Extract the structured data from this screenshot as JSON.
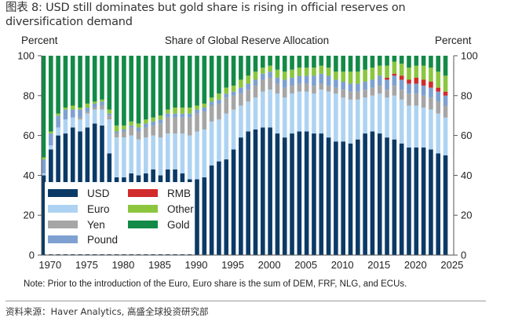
{
  "figure_title": "图表 8: USD still dominates but gold share is rising in official reserves on diversification demand",
  "note": "Note: Prior to the introduction of the Euro, Euro share is the sum of DEM, FRF, NLG, and ECUs.",
  "source": "资料来源：Haver Analytics, 高盛全球投资研究部",
  "chart_data": {
    "type": "bar",
    "stacked": true,
    "title": "Share of Global Reserve Allocation",
    "ylabel_left": "Percent",
    "ylabel_right": "Percent",
    "xlabel": "",
    "ylim": [
      0,
      100
    ],
    "yticks": [
      0,
      20,
      40,
      60,
      80,
      100
    ],
    "xtick_labels": [
      "1970",
      "1975",
      "1980",
      "1985",
      "1990",
      "1995",
      "2000",
      "2005",
      "2010",
      "2015",
      "2020",
      "2025"
    ],
    "grid": false,
    "legend_position": "bottom-left",
    "colors": {
      "USD": "#0b3a66",
      "Euro": "#aed3f2",
      "Yen": "#a6a6a6",
      "Pound": "#7ea1d1",
      "RMB": "#d22b2b",
      "Other": "#8cc63f",
      "Gold": "#138a48"
    },
    "legend": [
      "USD",
      "Euro",
      "Yen",
      "Pound",
      "RMB",
      "Other",
      "Gold"
    ],
    "categories": [
      1969,
      1970,
      1971,
      1972,
      1973,
      1974,
      1975,
      1976,
      1977,
      1978,
      1979,
      1980,
      1981,
      1982,
      1983,
      1984,
      1985,
      1986,
      1987,
      1988,
      1989,
      1990,
      1991,
      1992,
      1993,
      1994,
      1995,
      1996,
      1997,
      1998,
      1999,
      2000,
      2001,
      2002,
      2003,
      2004,
      2005,
      2006,
      2007,
      2008,
      2009,
      2010,
      2011,
      2012,
      2013,
      2014,
      2015,
      2016,
      2017,
      2018,
      2019,
      2020,
      2021,
      2022,
      2023,
      2024
    ],
    "series": [
      {
        "name": "USD",
        "values": [
          40,
          53,
          60,
          61,
          64,
          62,
          64,
          66,
          65,
          51,
          39,
          39,
          41,
          40,
          41,
          43,
          40,
          43,
          43,
          41,
          38,
          38,
          39,
          45,
          47,
          48,
          53,
          59,
          62,
          63,
          64,
          64,
          61,
          59,
          61,
          62,
          62,
          61,
          61,
          59,
          57,
          57,
          56,
          58,
          61,
          62,
          61,
          59,
          58,
          56,
          54,
          54,
          54,
          53,
          51,
          50
        ]
      },
      {
        "name": "Euro",
        "values": [
          1,
          2,
          4,
          7,
          5,
          6,
          7,
          7,
          8,
          17,
          20,
          20,
          19,
          18,
          18,
          17,
          19,
          18,
          18,
          20,
          22,
          24,
          24,
          22,
          21,
          23,
          20,
          16,
          15,
          16,
          18,
          19,
          20,
          20,
          20,
          20,
          20,
          20,
          22,
          23,
          24,
          22,
          22,
          20,
          18,
          18,
          20,
          20,
          22,
          22,
          21,
          21,
          20,
          20,
          20,
          19
        ]
      },
      {
        "name": "Yen",
        "values": [
          0,
          0,
          0,
          0,
          0,
          1,
          1,
          1,
          2,
          2,
          2,
          3,
          4,
          4,
          5,
          5,
          7,
          8,
          8,
          8,
          9,
          9,
          9,
          8,
          8,
          8,
          7,
          6,
          6,
          6,
          6,
          6,
          5,
          5,
          4,
          4,
          4,
          4,
          3,
          3,
          3,
          4,
          4,
          4,
          4,
          4,
          4,
          4,
          5,
          5,
          6,
          6,
          6,
          6,
          6,
          6
        ]
      },
      {
        "name": "Pound",
        "values": [
          7,
          6,
          6,
          5,
          4,
          4,
          2,
          2,
          2,
          1,
          1,
          1,
          1,
          2,
          2,
          2,
          2,
          2,
          2,
          2,
          2,
          2,
          2,
          2,
          2,
          2,
          2,
          3,
          3,
          3,
          3,
          3,
          3,
          4,
          4,
          4,
          4,
          5,
          5,
          5,
          4,
          4,
          4,
          4,
          4,
          4,
          5,
          5,
          5,
          5,
          5,
          5,
          5,
          5,
          5,
          5
        ]
      },
      {
        "name": "RMB",
        "values": [
          0,
          0,
          0,
          0,
          0,
          0,
          0,
          0,
          0,
          0,
          0,
          0,
          0,
          0,
          0,
          0,
          0,
          0,
          0,
          0,
          0,
          0,
          0,
          0,
          0,
          0,
          0,
          0,
          0,
          0,
          0,
          0,
          0,
          0,
          0,
          0,
          0,
          0,
          0,
          0,
          0,
          0,
          0,
          0,
          0,
          0,
          0,
          1,
          1,
          2,
          2,
          3,
          3,
          3,
          2,
          2
        ]
      },
      {
        "name": "Other",
        "values": [
          1,
          1,
          1,
          1,
          2,
          1,
          2,
          1,
          1,
          2,
          3,
          2,
          2,
          2,
          2,
          2,
          2,
          2,
          3,
          3,
          3,
          2,
          2,
          2,
          3,
          3,
          3,
          4,
          4,
          4,
          3,
          3,
          4,
          4,
          4,
          4,
          4,
          4,
          4,
          4,
          4,
          5,
          6,
          6,
          6,
          6,
          5,
          6,
          6,
          6,
          6,
          6,
          7,
          7,
          8,
          8
        ]
      },
      {
        "name": "Gold",
        "values": [
          51,
          38,
          29,
          26,
          25,
          26,
          24,
          23,
          22,
          27,
          35,
          35,
          33,
          34,
          32,
          31,
          30,
          27,
          26,
          26,
          26,
          25,
          24,
          21,
          19,
          16,
          15,
          12,
          10,
          8,
          6,
          5,
          7,
          8,
          7,
          6,
          6,
          6,
          5,
          6,
          8,
          8,
          8,
          8,
          7,
          6,
          5,
          5,
          3,
          4,
          6,
          5,
          5,
          6,
          8,
          10
        ]
      }
    ]
  }
}
